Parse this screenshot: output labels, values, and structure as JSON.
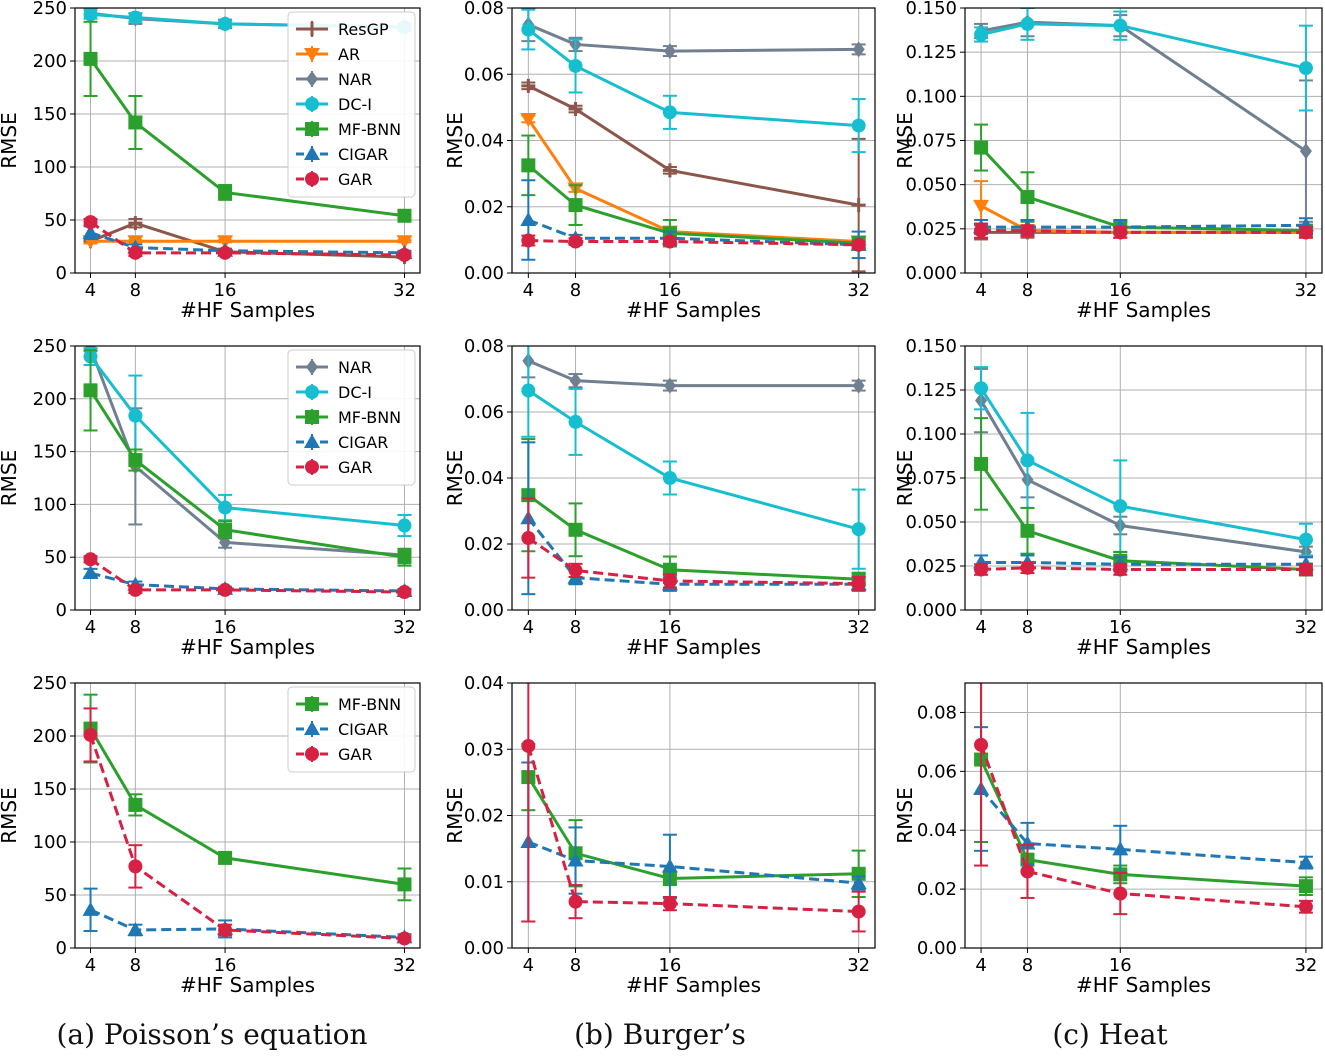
{
  "captions": {
    "a": "(a) Poisson’s equation",
    "b": "(b) Burger’s",
    "c": "(c) Heat"
  },
  "styles": {
    "ResGP": {
      "color": "#8c564b",
      "marker": "plus",
      "dash": false
    },
    "AR": {
      "color": "#ff7f0e",
      "marker": "tri_down",
      "dash": false
    },
    "NAR": {
      "color": "#708090",
      "marker": "diamond",
      "dash": false
    },
    "DC-I": {
      "color": "#17becf",
      "marker": "circle",
      "dash": false
    },
    "MF-BNN": {
      "color": "#2ca02c",
      "marker": "square",
      "dash": false
    },
    "CIGAR": {
      "color": "#1f77b4",
      "marker": "tri_up",
      "dash": true
    },
    "GAR": {
      "color": "#d62143",
      "marker": "circle",
      "dash": true
    }
  },
  "chart_data": [
    {
      "id": "p1",
      "type": "line",
      "xlabel": "#HF Samples",
      "ylabel": "RMSE",
      "x": [
        4,
        8,
        16,
        32
      ],
      "xticks": [
        "4",
        "8",
        "16",
        "32"
      ],
      "ylim": [
        0,
        250
      ],
      "yticks": [
        "0",
        "50",
        "100",
        "150",
        "200",
        "250"
      ],
      "legend": [
        "ResGP",
        "AR",
        "NAR",
        "DC-I",
        "MF-BNN",
        "CIGAR",
        "GAR"
      ],
      "series": [
        {
          "name": "ResGP",
          "values": [
            30,
            47,
            20,
            15
          ],
          "err": [
            2,
            4,
            2,
            1
          ]
        },
        {
          "name": "AR",
          "values": [
            30,
            30,
            30,
            30
          ],
          "err": [
            2,
            1,
            1,
            1
          ]
        },
        {
          "name": "NAR",
          "values": [
            245,
            240,
            235,
            232
          ],
          "err": [
            5,
            5,
            4,
            3
          ]
        },
        {
          "name": "DC-I",
          "values": [
            244,
            241,
            235,
            232
          ],
          "err": [
            4,
            4,
            3,
            3
          ]
        },
        {
          "name": "MF-BNN",
          "values": [
            202,
            142,
            76,
            54
          ],
          "err": [
            35,
            25,
            7,
            5
          ]
        },
        {
          "name": "CIGAR",
          "values": [
            38,
            24,
            21,
            19
          ],
          "err": [
            6,
            3,
            2,
            2
          ]
        },
        {
          "name": "GAR",
          "values": [
            48,
            19,
            19,
            17
          ],
          "err": [
            3,
            3,
            2,
            2
          ]
        }
      ]
    },
    {
      "id": "b1",
      "type": "line",
      "xlabel": "#HF Samples",
      "ylabel": "RMSE",
      "x": [
        4,
        8,
        16,
        32
      ],
      "xticks": [
        "4",
        "8",
        "16",
        "32"
      ],
      "ylim": [
        0,
        0.08
      ],
      "yticks": [
        "0.00",
        "0.02",
        "0.04",
        "0.06",
        "0.08"
      ],
      "series": [
        {
          "name": "ResGP",
          "values": [
            0.0565,
            0.0495,
            0.031,
            0.0205
          ],
          "err": [
            0.001,
            0.001,
            0.001,
            0.02
          ]
        },
        {
          "name": "AR",
          "values": [
            0.0465,
            0.0255,
            0.0125,
            0.0095
          ],
          "err": [
            0.001,
            0.001,
            0.001,
            0.001
          ]
        },
        {
          "name": "NAR",
          "values": [
            0.075,
            0.069,
            0.067,
            0.0675
          ],
          "err": [
            0.005,
            0.002,
            0.0015,
            0.0015
          ]
        },
        {
          "name": "DC-I",
          "values": [
            0.0735,
            0.0625,
            0.0485,
            0.0445
          ],
          "err": [
            0.006,
            0.008,
            0.005,
            0.008
          ]
        },
        {
          "name": "MF-BNN",
          "values": [
            0.0325,
            0.0205,
            0.012,
            0.009
          ],
          "err": [
            0.009,
            0.006,
            0.004,
            0.002
          ]
        },
        {
          "name": "CIGAR",
          "values": [
            0.016,
            0.0105,
            0.0105,
            0.0085
          ],
          "err": [
            0.012,
            0.001,
            0.002,
            0.004
          ]
        },
        {
          "name": "GAR",
          "values": [
            0.0098,
            0.0095,
            0.0095,
            0.0085
          ],
          "err": [
            0.0015,
            0.001,
            0.001,
            0.001
          ]
        }
      ]
    },
    {
      "id": "h1",
      "type": "line",
      "xlabel": "#HF Samples",
      "ylabel": "RMSE",
      "x": [
        4,
        8,
        16,
        32
      ],
      "xticks": [
        "4",
        "8",
        "16",
        "32"
      ],
      "ylim": [
        0,
        0.15
      ],
      "yticks": [
        "0.000",
        "0.025",
        "0.050",
        "0.075",
        "0.100",
        "0.125",
        "0.150"
      ],
      "series": [
        {
          "name": "ResGP",
          "values": [
            0.023,
            0.023,
            0.023,
            0.023
          ],
          "err": [
            0.004,
            0.003,
            0.003,
            0.003
          ]
        },
        {
          "name": "AR",
          "values": [
            0.038,
            0.024,
            0.023,
            0.023
          ],
          "err": [
            0.014,
            0.003,
            0.003,
            0.003
          ]
        },
        {
          "name": "NAR",
          "values": [
            0.137,
            0.142,
            0.14,
            0.069
          ],
          "err": [
            0.004,
            0.008,
            0.006,
            0.04
          ]
        },
        {
          "name": "DC-I",
          "values": [
            0.135,
            0.141,
            0.14,
            0.116
          ],
          "err": [
            0.004,
            0.009,
            0.008,
            0.024
          ]
        },
        {
          "name": "MF-BNN",
          "values": [
            0.071,
            0.043,
            0.026,
            0.024
          ],
          "err": [
            0.013,
            0.014,
            0.003,
            0.002
          ]
        },
        {
          "name": "CIGAR",
          "values": [
            0.026,
            0.026,
            0.026,
            0.027
          ],
          "err": [
            0.004,
            0.004,
            0.004,
            0.004
          ]
        },
        {
          "name": "GAR",
          "values": [
            0.024,
            0.024,
            0.023,
            0.023
          ],
          "err": [
            0.004,
            0.003,
            0.003,
            0.003
          ]
        }
      ]
    },
    {
      "id": "p2",
      "type": "line",
      "xlabel": "#HF Samples",
      "ylabel": "RMSE",
      "x": [
        4,
        8,
        16,
        32
      ],
      "xticks": [
        "4",
        "8",
        "16",
        "32"
      ],
      "ylim": [
        0,
        250
      ],
      "yticks": [
        "0",
        "50",
        "100",
        "150",
        "200",
        "250"
      ],
      "legend": [
        "NAR",
        "DC-I",
        "MF-BNN",
        "CIGAR",
        "GAR"
      ],
      "series": [
        {
          "name": "NAR",
          "values": [
            248,
            136,
            64,
            52
          ],
          "err": [
            3,
            55,
            5,
            5
          ]
        },
        {
          "name": "DC-I",
          "values": [
            240,
            184,
            97,
            80
          ],
          "err": [
            8,
            38,
            12,
            10
          ]
        },
        {
          "name": "MF-BNN",
          "values": [
            208,
            142,
            76,
            50
          ],
          "err": [
            38,
            10,
            8,
            8
          ]
        },
        {
          "name": "CIGAR",
          "values": [
            35,
            24,
            20,
            18
          ],
          "err": [
            4,
            3,
            2,
            2
          ]
        },
        {
          "name": "GAR",
          "values": [
            48,
            19,
            19,
            17
          ],
          "err": [
            3,
            3,
            2,
            2
          ]
        }
      ]
    },
    {
      "id": "b2",
      "type": "line",
      "xlabel": "#HF Samples",
      "ylabel": "RMSE",
      "x": [
        4,
        8,
        16,
        32
      ],
      "xticks": [
        "4",
        "8",
        "16",
        "32"
      ],
      "ylim": [
        0,
        0.08
      ],
      "yticks": [
        "0.00",
        "0.02",
        "0.04",
        "0.06",
        "0.08"
      ],
      "series": [
        {
          "name": "NAR",
          "values": [
            0.0755,
            0.0695,
            0.068,
            0.068
          ],
          "err": [
            0.005,
            0.002,
            0.0015,
            0.0015
          ]
        },
        {
          "name": "DC-I",
          "values": [
            0.0665,
            0.057,
            0.04,
            0.0245
          ],
          "err": [
            0.014,
            0.01,
            0.005,
            0.012
          ]
        },
        {
          "name": "MF-BNN",
          "values": [
            0.0348,
            0.0243,
            0.0122,
            0.0093
          ],
          "err": [
            0.017,
            0.008,
            0.004,
            0.002
          ]
        },
        {
          "name": "CIGAR",
          "values": [
            0.0278,
            0.0098,
            0.0078,
            0.0078
          ],
          "err": [
            0.023,
            0.002,
            0.002,
            0.002
          ]
        },
        {
          "name": "GAR",
          "values": [
            0.0218,
            0.012,
            0.0088,
            0.008
          ],
          "err": [
            0.012,
            0.002,
            0.002,
            0.002
          ]
        }
      ]
    },
    {
      "id": "h2",
      "type": "line",
      "xlabel": "#HF Samples",
      "ylabel": "RMSE",
      "x": [
        4,
        8,
        16,
        32
      ],
      "xticks": [
        "4",
        "8",
        "16",
        "32"
      ],
      "ylim": [
        0,
        0.15
      ],
      "yticks": [
        "0.000",
        "0.025",
        "0.050",
        "0.075",
        "0.100",
        "0.125",
        "0.150"
      ],
      "series": [
        {
          "name": "NAR",
          "values": [
            0.119,
            0.074,
            0.048,
            0.033
          ],
          "err": [
            0.018,
            0.01,
            0.005,
            0.003
          ]
        },
        {
          "name": "DC-I",
          "values": [
            0.126,
            0.085,
            0.059,
            0.04
          ],
          "err": [
            0.012,
            0.027,
            0.026,
            0.009
          ]
        },
        {
          "name": "MF-BNN",
          "values": [
            0.083,
            0.045,
            0.028,
            0.023
          ],
          "err": [
            0.026,
            0.013,
            0.005,
            0.003
          ]
        },
        {
          "name": "CIGAR",
          "values": [
            0.027,
            0.027,
            0.026,
            0.026
          ],
          "err": [
            0.004,
            0.004,
            0.004,
            0.004
          ]
        },
        {
          "name": "GAR",
          "values": [
            0.023,
            0.024,
            0.023,
            0.023
          ],
          "err": [
            0.003,
            0.003,
            0.003,
            0.003
          ]
        }
      ]
    },
    {
      "id": "p3",
      "type": "line",
      "xlabel": "#HF Samples",
      "ylabel": "RMSE",
      "x": [
        4,
        8,
        16,
        32
      ],
      "xticks": [
        "4",
        "8",
        "16",
        "32"
      ],
      "ylim": [
        0,
        250
      ],
      "yticks": [
        "0",
        "50",
        "100",
        "150",
        "200",
        "250"
      ],
      "legend": [
        "MF-BNN",
        "CIGAR",
        "GAR"
      ],
      "series": [
        {
          "name": "MF-BNN",
          "values": [
            207,
            135,
            85,
            60
          ],
          "err": [
            32,
            10,
            5,
            15
          ]
        },
        {
          "name": "CIGAR",
          "values": [
            36,
            17,
            18,
            10
          ],
          "err": [
            20,
            5,
            8,
            3
          ]
        },
        {
          "name": "GAR",
          "values": [
            201,
            77,
            17,
            9
          ],
          "err": [
            25,
            20,
            5,
            2
          ]
        }
      ]
    },
    {
      "id": "b3",
      "type": "line",
      "xlabel": "#HF Samples",
      "ylabel": "RMSE",
      "x": [
        4,
        8,
        16,
        32
      ],
      "xticks": [
        "4",
        "8",
        "16",
        "32"
      ],
      "ylim": [
        0,
        0.04
      ],
      "yticks": [
        "0.00",
        "0.01",
        "0.02",
        "0.03",
        "0.04"
      ],
      "series": [
        {
          "name": "MF-BNN",
          "values": [
            0.0258,
            0.0143,
            0.0105,
            0.0112
          ],
          "err": [
            0.005,
            0.005,
            0.001,
            0.0035
          ]
        },
        {
          "name": "CIGAR",
          "values": [
            0.016,
            0.0132,
            0.0123,
            0.0098
          ],
          "err": [
            0.012,
            0.005,
            0.0048,
            0.001
          ]
        },
        {
          "name": "GAR",
          "values": [
            0.0305,
            0.007,
            0.0067,
            0.0055
          ],
          "err": [
            0.0265,
            0.0025,
            0.001,
            0.003
          ]
        }
      ]
    },
    {
      "id": "h3",
      "type": "line",
      "xlabel": "#HF Samples",
      "ylabel": "RMSE",
      "x": [
        4,
        8,
        16,
        32
      ],
      "xticks": [
        "4",
        "8",
        "16",
        "32"
      ],
      "ylim": [
        0,
        0.09
      ],
      "yticks": [
        "0.00",
        "0.02",
        "0.04",
        "0.06",
        "0.08"
      ],
      "series": [
        {
          "name": "MF-BNN",
          "values": [
            0.064,
            0.03,
            0.025,
            0.021
          ],
          "err": [
            0.028,
            0.004,
            0.003,
            0.003
          ]
        },
        {
          "name": "CIGAR",
          "values": [
            0.054,
            0.0355,
            0.0335,
            0.029
          ],
          "err": [
            0.021,
            0.007,
            0.008,
            0.002
          ]
        },
        {
          "name": "GAR",
          "values": [
            0.069,
            0.026,
            0.0185,
            0.014
          ],
          "err": [
            0.041,
            0.009,
            0.007,
            0.002
          ]
        }
      ]
    }
  ]
}
